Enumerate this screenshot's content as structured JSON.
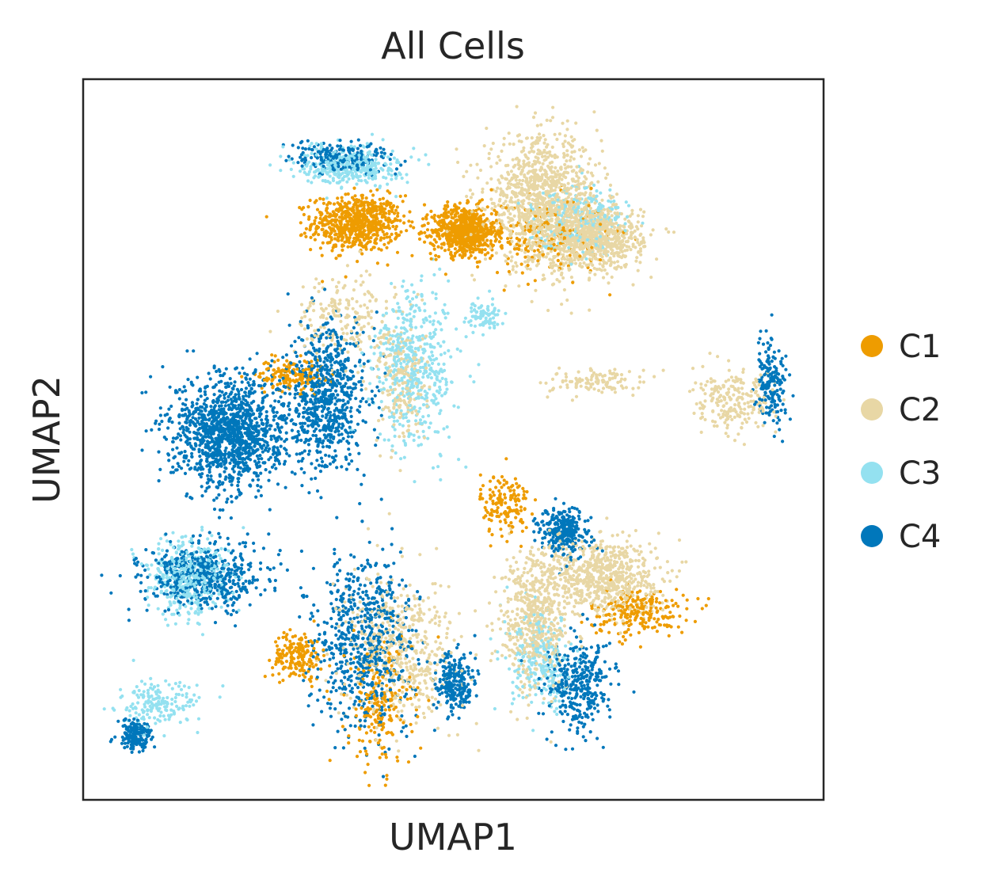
{
  "chart_data": {
    "type": "scatter",
    "title": "All Cells",
    "xlabel": "UMAP1",
    "ylabel": "UMAP2",
    "xlim": [
      0,
      100
    ],
    "ylim": [
      0,
      100
    ],
    "grid": false,
    "x_ticks": [],
    "y_ticks": [],
    "legend": {
      "placement": "right",
      "entries": [
        {
          "label": "C1",
          "color": "#ee9c00"
        },
        {
          "label": "C2",
          "color": "#e8d7a5"
        },
        {
          "label": "C3",
          "color": "#94e1f0"
        },
        {
          "label": "C4",
          "color": "#0077bb"
        }
      ]
    },
    "series": [
      {
        "name": "C1",
        "color": "#ee9c00",
        "clusters": [
          {
            "cx": 37,
            "cy": 80,
            "rx": 5.5,
            "ry": 3.5,
            "n": 700
          },
          {
            "cx": 51.5,
            "cy": 79,
            "rx": 4,
            "ry": 3,
            "n": 700
          },
          {
            "cx": 62,
            "cy": 78,
            "rx": 8,
            "ry": 5,
            "n": 200
          },
          {
            "cx": 28,
            "cy": 59,
            "rx": 4,
            "ry": 2,
            "n": 150
          },
          {
            "cx": 57,
            "cy": 41,
            "rx": 3,
            "ry": 4,
            "n": 150
          },
          {
            "cx": 75,
            "cy": 26,
            "rx": 6,
            "ry": 3,
            "n": 220
          },
          {
            "cx": 29,
            "cy": 20,
            "rx": 3,
            "ry": 3,
            "n": 180
          },
          {
            "cx": 40,
            "cy": 13,
            "rx": 4,
            "ry": 8,
            "n": 200
          }
        ]
      },
      {
        "name": "C2",
        "color": "#e8d7a5",
        "clusters": [
          {
            "cx": 62,
            "cy": 83,
            "rx": 7,
            "ry": 8,
            "n": 1100
          },
          {
            "cx": 69,
            "cy": 78,
            "rx": 6,
            "ry": 4,
            "n": 800
          },
          {
            "cx": 35,
            "cy": 67,
            "rx": 6,
            "ry": 5,
            "n": 200
          },
          {
            "cx": 43,
            "cy": 58,
            "rx": 3,
            "ry": 8,
            "n": 200
          },
          {
            "cx": 70,
            "cy": 31,
            "rx": 7,
            "ry": 5,
            "n": 700
          },
          {
            "cx": 61,
            "cy": 25,
            "rx": 4,
            "ry": 9,
            "n": 500
          },
          {
            "cx": 43,
            "cy": 21,
            "rx": 7,
            "ry": 9,
            "n": 500
          },
          {
            "cx": 88,
            "cy": 55,
            "rx": 5,
            "ry": 4,
            "n": 220
          },
          {
            "cx": 69,
            "cy": 58,
            "rx": 6,
            "ry": 1.5,
            "n": 120
          }
        ]
      },
      {
        "name": "C3",
        "color": "#94e1f0",
        "clusters": [
          {
            "cx": 36,
            "cy": 88,
            "rx": 6,
            "ry": 2.5,
            "n": 350
          },
          {
            "cx": 45,
            "cy": 60,
            "rx": 5,
            "ry": 10,
            "n": 500
          },
          {
            "cx": 14,
            "cy": 31,
            "rx": 5,
            "ry": 5,
            "n": 400
          },
          {
            "cx": 10,
            "cy": 13,
            "rx": 5,
            "ry": 3,
            "n": 180
          },
          {
            "cx": 62,
            "cy": 19,
            "rx": 4,
            "ry": 6,
            "n": 250
          },
          {
            "cx": 67,
            "cy": 81,
            "rx": 6,
            "ry": 4,
            "n": 250
          },
          {
            "cx": 54,
            "cy": 67,
            "rx": 2,
            "ry": 2,
            "n": 80
          }
        ]
      },
      {
        "name": "C4",
        "color": "#0077bb",
        "clusters": [
          {
            "cx": 20,
            "cy": 51,
            "rx": 7,
            "ry": 7,
            "n": 1300
          },
          {
            "cx": 33,
            "cy": 56,
            "rx": 5,
            "ry": 9,
            "n": 700
          },
          {
            "cx": 16,
            "cy": 31,
            "rx": 7,
            "ry": 4,
            "n": 550
          },
          {
            "cx": 38,
            "cy": 22,
            "rx": 6,
            "ry": 11,
            "n": 700
          },
          {
            "cx": 50,
            "cy": 16,
            "rx": 2.5,
            "ry": 4,
            "n": 250
          },
          {
            "cx": 65,
            "cy": 37,
            "rx": 3,
            "ry": 3,
            "n": 300
          },
          {
            "cx": 67,
            "cy": 16,
            "rx": 4,
            "ry": 6,
            "n": 350
          },
          {
            "cx": 7,
            "cy": 9,
            "rx": 2,
            "ry": 2,
            "n": 180
          },
          {
            "cx": 93,
            "cy": 58,
            "rx": 2,
            "ry": 5,
            "n": 180
          },
          {
            "cx": 35,
            "cy": 89,
            "rx": 6,
            "ry": 2,
            "n": 220
          }
        ]
      }
    ]
  }
}
